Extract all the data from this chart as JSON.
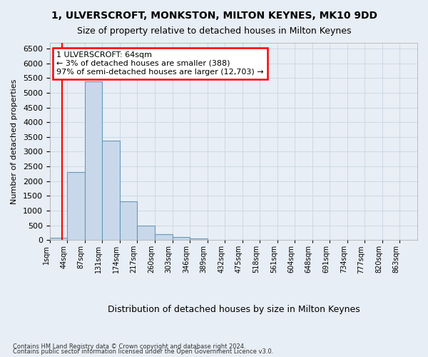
{
  "title1": "1, ULVERSCROFT, MONKSTON, MILTON KEYNES, MK10 9DD",
  "title2": "Size of property relative to detached houses in Milton Keynes",
  "xlabel": "Distribution of detached houses by size in Milton Keynes",
  "ylabel": "Number of detached properties",
  "footnote1": "Contains HM Land Registry data © Crown copyright and database right 2024.",
  "footnote2": "Contains public sector information licensed under the Open Government Licence v3.0.",
  "bin_labels": [
    "1sqm",
    "44sqm",
    "87sqm",
    "131sqm",
    "174sqm",
    "217sqm",
    "260sqm",
    "303sqm",
    "346sqm",
    "389sqm",
    "432sqm",
    "475sqm",
    "518sqm",
    "561sqm",
    "604sqm",
    "648sqm",
    "691sqm",
    "734sqm",
    "777sqm",
    "820sqm",
    "863sqm"
  ],
  "bar_values": [
    75,
    2300,
    5400,
    3380,
    1310,
    480,
    195,
    100,
    55,
    0,
    0,
    0,
    0,
    0,
    0,
    0,
    0,
    0,
    0,
    0,
    0
  ],
  "bar_color": "#c8d8ea",
  "bar_edge_color": "#6699bb",
  "grid_color": "#ccd9e8",
  "bg_color": "#e8eef5",
  "red_line_x": 0.72,
  "annotation_text": "1 ULVERSCROFT: 64sqm\n← 3% of detached houses are smaller (388)\n97% of semi-detached houses are larger (12,703) →",
  "ylim": [
    0,
    6700
  ],
  "yticks": [
    0,
    500,
    1000,
    1500,
    2000,
    2500,
    3000,
    3500,
    4000,
    4500,
    5000,
    5500,
    6000,
    6500
  ]
}
